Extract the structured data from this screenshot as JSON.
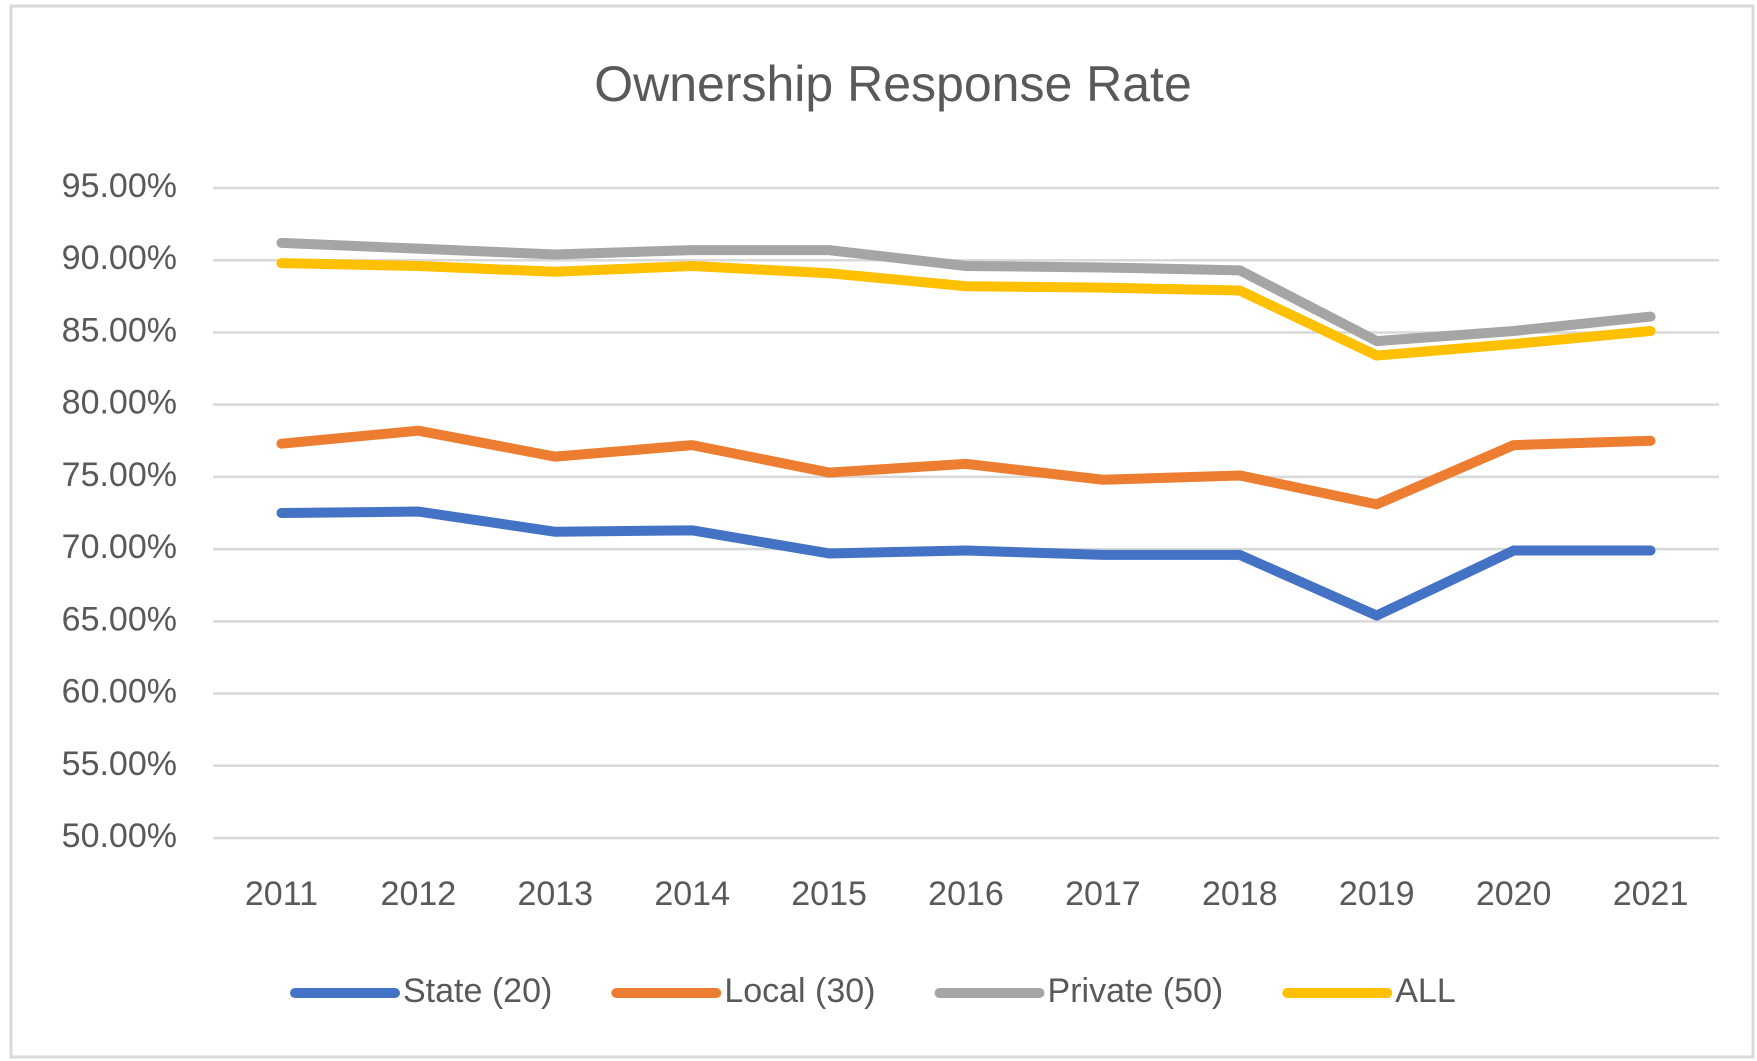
{
  "chart_data": {
    "type": "line",
    "title": "Ownership Response Rate",
    "categories": [
      "2011",
      "2012",
      "2013",
      "2014",
      "2015",
      "2016",
      "2017",
      "2018",
      "2019",
      "2020",
      "2021"
    ],
    "series": [
      {
        "name": "State (20)",
        "color": "#4472c4",
        "values": [
          72.5,
          72.6,
          71.2,
          71.3,
          69.7,
          69.9,
          69.6,
          69.6,
          65.4,
          69.9,
          69.9
        ]
      },
      {
        "name": "Local (30)",
        "color": "#ed7d31",
        "values": [
          77.3,
          78.2,
          76.4,
          77.2,
          75.3,
          75.9,
          74.8,
          75.1,
          73.1,
          77.2,
          77.5
        ]
      },
      {
        "name": "Private (50)",
        "color": "#a5a5a5",
        "values": [
          91.2,
          90.8,
          90.4,
          90.7,
          90.7,
          89.6,
          89.5,
          89.3,
          84.4,
          85.1,
          86.1
        ]
      },
      {
        "name": "ALL",
        "color": "#ffc000",
        "values": [
          89.8,
          89.6,
          89.2,
          89.6,
          89.1,
          88.2,
          88.1,
          87.9,
          83.4,
          84.2,
          85.1
        ]
      }
    ],
    "ylim": [
      50,
      95
    ],
    "yticks": [
      {
        "value": 50,
        "label": "50.00%"
      },
      {
        "value": 55,
        "label": "55.00%"
      },
      {
        "value": 60,
        "label": "60.00%"
      },
      {
        "value": 65,
        "label": "65.00%"
      },
      {
        "value": 70,
        "label": "70.00%"
      },
      {
        "value": 75,
        "label": "75.00%"
      },
      {
        "value": 80,
        "label": "80.00%"
      },
      {
        "value": 85,
        "label": "85.00%"
      },
      {
        "value": 90,
        "label": "90.00%"
      },
      {
        "value": 95,
        "label": "95.00%"
      }
    ],
    "grid": true,
    "legend": "bottom"
  }
}
